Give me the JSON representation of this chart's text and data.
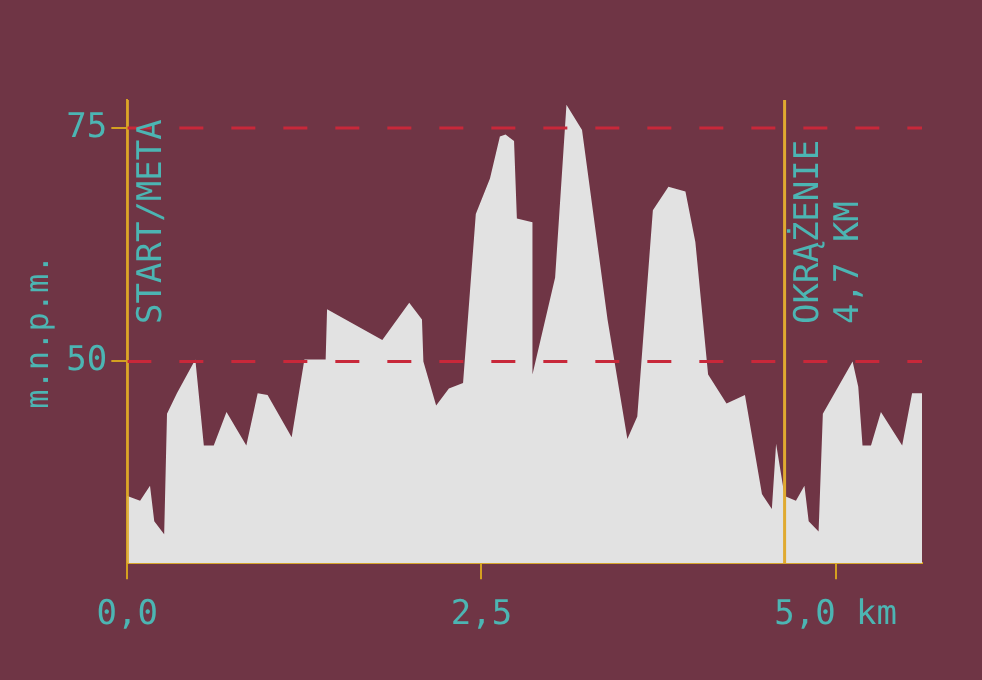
{
  "chart_data": {
    "type": "area",
    "ylabel": "m.n.p.m.",
    "x": [
      0,
      0.09,
      0.16,
      0.19,
      0.26,
      0.28,
      0.35,
      0.48,
      0.54,
      0.61,
      0.7,
      0.84,
      0.92,
      0.99,
      1.16,
      1.25,
      1.4,
      1.41,
      1.8,
      1.99,
      2.08,
      2.09,
      2.18,
      2.27,
      2.37,
      2.46,
      2.56,
      2.63,
      2.67,
      2.73,
      2.75,
      2.86,
      2.86,
      3.02,
      3.1,
      3.21,
      3.39,
      3.53,
      3.6,
      3.71,
      3.82,
      3.94,
      4.01,
      4.1,
      4.23,
      4.36,
      4.48,
      4.55,
      4.58,
      4.64,
      4.72,
      4.78,
      4.81,
      4.88,
      4.91,
      5.12,
      5.16,
      5.19,
      5.25,
      5.32,
      5.47,
      5.54,
      5.61
    ],
    "series": [
      {
        "color": "#e2e2e2",
        "values": [
          35.6,
          35.1,
          36.7,
          32.9,
          31.5,
          44.4,
          46.6,
          50.2,
          41,
          41,
          44.6,
          41,
          46.6,
          46.4,
          41.9,
          50.2,
          50.2,
          55.6,
          52.3,
          56.3,
          54.5,
          50,
          45.3,
          47.1,
          47.7,
          65.8,
          69.6,
          74.1,
          74.3,
          73.6,
          65.3,
          64.9,
          48.6,
          59,
          77.5,
          74.8,
          54.5,
          41.7,
          44.1,
          66.2,
          68.7,
          68.2,
          62.8,
          48.6,
          45.5,
          46.4,
          35.8,
          34.2,
          41.2,
          35.6,
          35.1,
          36.7,
          32.9,
          31.8,
          44.4,
          50,
          47.3,
          41,
          41,
          44.6,
          41,
          46.6,
          46.6
        ]
      }
    ],
    "xlim": [
      0,
      5.61
    ],
    "ylim": [
      28.4,
      78
    ],
    "xticks": [
      {
        "value": 0,
        "label": "0,0"
      },
      {
        "value": 2.5,
        "label": "2,5"
      },
      {
        "value": 5,
        "label": "5,0 km"
      }
    ],
    "yticks": [
      50,
      75
    ],
    "ref_lines": [
      {
        "axis": "y",
        "value": 50,
        "color": "#c8283a",
        "line_style": "dashed"
      },
      {
        "axis": "y",
        "value": 75,
        "color": "#c8283a",
        "line_style": "dashed"
      },
      {
        "axis": "x",
        "value": 0,
        "label": "START/META",
        "color": "#e0aa30",
        "line_style": "solid"
      },
      {
        "axis": "x",
        "value": 4.64,
        "label": "OKRĄŻENIE\n4,7 KM",
        "color": "#e0aa30",
        "line_style": "solid"
      }
    ],
    "grid": false,
    "legend": false,
    "marker": "none"
  }
}
